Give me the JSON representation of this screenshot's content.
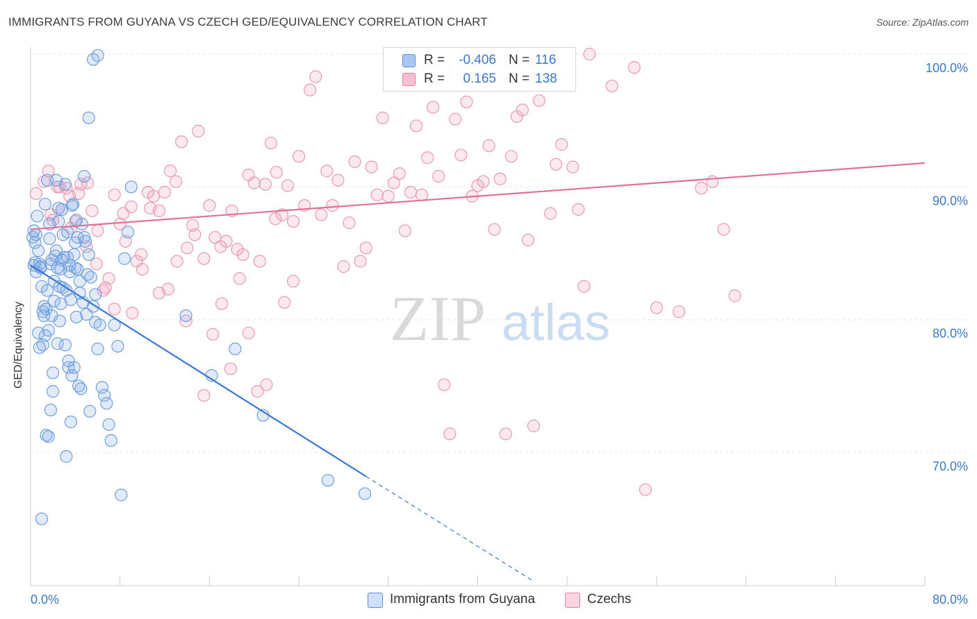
{
  "title": "IMMIGRANTS FROM GUYANA VS CZECH GED/EQUIVALENCY CORRELATION CHART",
  "source": "Source: ZipAtlas.com",
  "watermark": {
    "zip": "ZIP",
    "atlas": "atlas"
  },
  "legend": {
    "rows": [
      {
        "r_label": "R =",
        "r_value": "-0.406",
        "n_label": "N =",
        "n_value": "116",
        "color": "#a9c7f0",
        "border": "#5b8fd6"
      },
      {
        "r_label": "R =",
        "r_value": "0.165",
        "n_label": "N =",
        "n_value": "138",
        "color": "#f7c0d0",
        "border": "#e87ba0"
      }
    ]
  },
  "bottom_legend": {
    "items": [
      {
        "label": "Immigrants from Guyana",
        "color": "#cfe0f8",
        "border": "#5b8fd6"
      },
      {
        "label": "Czechs",
        "color": "#fbd5df",
        "border": "#e87ba0"
      }
    ]
  },
  "chart_data": {
    "type": "scatter",
    "title": "IMMIGRANTS FROM GUYANA VS CZECH GED/EQUIVALENCY CORRELATION CHART",
    "xlabel": "",
    "ylabel": "GED/Equivalency",
    "xlim": [
      0,
      80
    ],
    "ylim": [
      60,
      100
    ],
    "x_tick_labels": {
      "left": "0.0%",
      "right": "80.0%"
    },
    "y_ticks": [
      {
        "value": 100,
        "label": "100.0%"
      },
      {
        "value": 90,
        "label": "90.0%"
      },
      {
        "value": 80,
        "label": "80.0%"
      },
      {
        "value": 70,
        "label": "70.0%"
      }
    ],
    "grid": true,
    "colors": {
      "blue": "#3a78d4",
      "pink": "#e0709a",
      "blue_fill": "rgba(130,170,230,0.25)",
      "pink_fill": "rgba(240,150,180,0.22)"
    },
    "series": [
      {
        "name": "Immigrants from Guyana",
        "trend": {
          "x": [
            0.0,
            30.0
          ],
          "y": [
            84.1,
            68.2
          ],
          "dashed_to": [
            44.8,
            60.4
          ]
        },
        "x": [
          0.2,
          0.3,
          0.4,
          0.5,
          0.6,
          0.7,
          0.8,
          0.9,
          1.0,
          1.1,
          1.2,
          1.3,
          1.4,
          1.5,
          1.6,
          1.7,
          1.8,
          1.9,
          2.0,
          2.1,
          2.2,
          2.3,
          2.4,
          2.5,
          2.6,
          2.7,
          2.8,
          2.9,
          3.0,
          3.1,
          3.2,
          3.3,
          3.4,
          3.5,
          3.6,
          3.7,
          3.8,
          3.9,
          4.0,
          4.1,
          4.2,
          4.4,
          4.6,
          4.8,
          5.0,
          5.2,
          5.4,
          5.6,
          5.8,
          6.0,
          6.2,
          6.4,
          6.6,
          6.8,
          7.0,
          7.2,
          7.5,
          7.8,
          8.1,
          8.4,
          8.7,
          9.0,
          0.3,
          0.5,
          0.7,
          0.9,
          1.1,
          1.3,
          1.5,
          1.7,
          1.9,
          2.1,
          2.3,
          2.5,
          2.7,
          2.9,
          3.1,
          3.3,
          3.5,
          3.7,
          3.9,
          4.1,
          4.3,
          4.5,
          4.7,
          4.9,
          5.1,
          5.3,
          0.4,
          0.8,
          1.2,
          1.6,
          2.0,
          2.4,
          2.8,
          3.2,
          3.6,
          4.0,
          4.4,
          4.8,
          5.2,
          5.6,
          6.0,
          1.0,
          1.4,
          1.8,
          2.6,
          3.4,
          4.2,
          5.8,
          13.9,
          16.2,
          18.3,
          20.8,
          26.6,
          29.9
        ],
        "y": [
          86.2,
          84.1,
          85.8,
          83.6,
          87.8,
          79.0,
          84.2,
          83.9,
          82.5,
          78.1,
          81.0,
          88.7,
          80.8,
          90.5,
          79.2,
          86.1,
          84.2,
          80.3,
          76.0,
          82.9,
          84.8,
          85.2,
          78.2,
          87.4,
          79.9,
          81.2,
          88.3,
          86.4,
          84.7,
          90.2,
          82.2,
          84.7,
          76.4,
          83.6,
          81.5,
          75.8,
          88.7,
          84.9,
          85.8,
          87.5,
          83.8,
          82.9,
          87.2,
          86.2,
          80.4,
          84.9,
          83.2,
          81.0,
          79.8,
          77.8,
          79.6,
          74.9,
          74.3,
          73.7,
          72.1,
          70.9,
          79.6,
          78.0,
          66.8,
          84.6,
          86.6,
          90.0,
          86.7,
          86.4,
          85.2,
          84.0,
          80.6,
          78.8,
          82.2,
          87.2,
          84.5,
          81.4,
          90.5,
          88.4,
          83.8,
          82.4,
          78.1,
          86.6,
          84.1,
          88.6,
          76.4,
          80.2,
          75.0,
          74.8,
          81.3,
          85.9,
          83.4,
          73.1,
          84.3,
          77.9,
          80.3,
          71.2,
          74.6,
          83.9,
          84.5,
          69.7,
          72.3,
          83.9,
          82.0,
          90.8,
          95.2,
          99.6,
          99.9,
          65.0,
          71.3,
          73.2,
          82.5,
          76.9,
          86.2,
          81.9,
          80.3,
          75.8,
          77.8,
          72.8,
          67.9,
          66.9
        ]
      },
      {
        "name": "Czechs",
        "trend": {
          "x": [
            0.0,
            80.0
          ],
          "y": [
            86.8,
            91.8
          ]
        },
        "x": [
          0.5,
          1.2,
          1.6,
          2.0,
          2.4,
          2.8,
          3.2,
          3.6,
          4.0,
          4.5,
          5.0,
          5.5,
          6.0,
          6.5,
          7.0,
          7.5,
          8.0,
          8.5,
          9.0,
          9.5,
          10.0,
          10.5,
          11.0,
          11.5,
          12.0,
          12.5,
          13.0,
          13.5,
          14.0,
          14.5,
          15.0,
          15.5,
          16.0,
          16.5,
          17.0,
          17.5,
          18.0,
          18.5,
          19.0,
          19.5,
          20.0,
          20.5,
          21.0,
          21.5,
          22.0,
          22.5,
          23.0,
          23.5,
          24.0,
          24.5,
          25.0,
          25.5,
          26.0,
          26.5,
          27.0,
          27.5,
          28.0,
          28.5,
          29.0,
          29.5,
          30.0,
          30.5,
          31.0,
          31.5,
          32.0,
          32.5,
          33.0,
          33.5,
          34.0,
          34.5,
          35.0,
          35.5,
          36.0,
          36.5,
          37.0,
          37.5,
          38.0,
          38.5,
          39.0,
          39.5,
          40.0,
          40.5,
          41.0,
          41.5,
          42.0,
          42.5,
          43.0,
          43.5,
          44.0,
          44.5,
          45.0,
          45.5,
          46.0,
          46.5,
          47.0,
          47.5,
          48.0,
          48.5,
          49.0,
          49.5,
          50.0,
          52.0,
          54.0,
          55.0,
          56.0,
          58.0,
          60.0,
          61.0,
          62.0,
          63.0,
          1.8,
          2.6,
          3.5,
          4.3,
          5.1,
          5.9,
          6.7,
          7.5,
          8.3,
          9.1,
          9.9,
          10.7,
          11.5,
          12.3,
          13.1,
          13.9,
          14.7,
          15.5,
          16.3,
          17.1,
          17.9,
          18.7,
          19.5,
          20.3,
          21.1,
          21.9,
          22.7,
          23.5
        ],
        "y": [
          89.5,
          90.4,
          91.2,
          87.5,
          90.0,
          88.3,
          89.9,
          86.9,
          87.4,
          90.2,
          85.5,
          88.2,
          86.7,
          82.2,
          83.1,
          89.4,
          87.2,
          85.9,
          88.5,
          84.4,
          83.8,
          89.6,
          89.3,
          88.2,
          89.6,
          91.2,
          90.4,
          93.4,
          85.4,
          87.1,
          94.2,
          84.6,
          88.6,
          86.2,
          85.5,
          85.9,
          88.2,
          85.3,
          84.9,
          90.9,
          90.3,
          84.4,
          90.2,
          93.3,
          91.1,
          87.9,
          90.1,
          87.4,
          92.3,
          88.6,
          97.3,
          98.3,
          87.9,
          91.2,
          88.6,
          90.5,
          84.0,
          87.3,
          91.9,
          84.4,
          85.4,
          91.5,
          89.4,
          95.2,
          89.3,
          90.3,
          91.0,
          86.7,
          89.6,
          94.6,
          89.4,
          92.2,
          96.0,
          90.8,
          75.1,
          71.4,
          95.1,
          92.4,
          96.4,
          89.3,
          90.1,
          90.4,
          93.1,
          86.8,
          90.6,
          71.4,
          92.3,
          95.3,
          95.8,
          86.0,
          72.0,
          96.5,
          100.0,
          88.0,
          91.7,
          93.2,
          100.0,
          91.5,
          88.3,
          82.5,
          100.0,
          97.6,
          99.0,
          67.2,
          80.9,
          80.6,
          89.9,
          90.4,
          86.8,
          81.8,
          87.9,
          90.0,
          89.3,
          89.5,
          90.3,
          84.2,
          82.4,
          80.8,
          88.0,
          80.5,
          84.9,
          88.4,
          82.0,
          82.3,
          84.4,
          79.9,
          86.4,
          74.3,
          78.9,
          81.2,
          76.3,
          83.1,
          79.0,
          74.6,
          75.1,
          87.6,
          81.3,
          82.9
        ]
      }
    ]
  }
}
